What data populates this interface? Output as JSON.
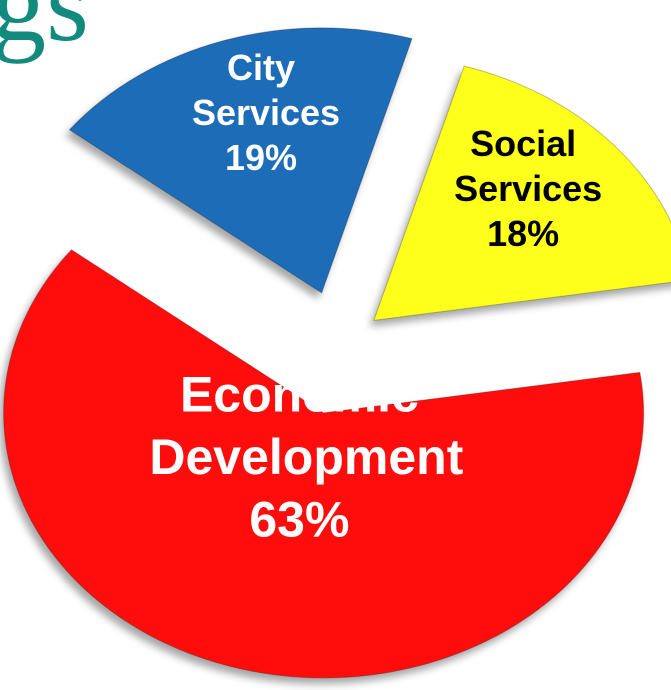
{
  "logo": "gs",
  "chart_data": {
    "type": "pie",
    "categories": [
      "City Services",
      "Social Services",
      "Economic Development"
    ],
    "values": [
      19,
      18,
      63
    ],
    "value_labels": [
      "19%",
      "18%",
      "63%"
    ],
    "colors": [
      "#1f6cb8",
      "#ffff1a",
      "#ff1010"
    ],
    "start_angle": -52
  }
}
